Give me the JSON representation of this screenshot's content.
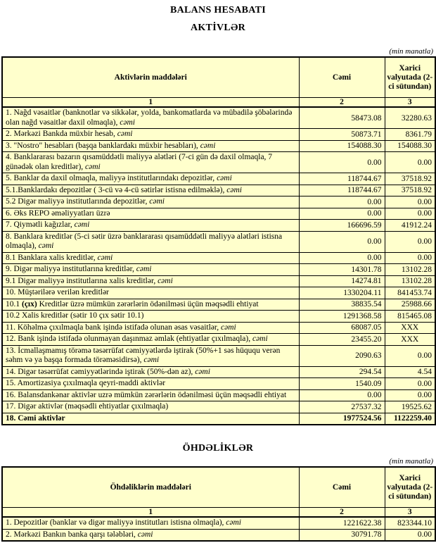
{
  "colors": {
    "cell_bg": "#FFFFCC",
    "white_bg": "#FFFFFF",
    "border": "#000000"
  },
  "page": {
    "title": "BALANS HESABATI"
  },
  "assets": {
    "heading": "AKTİVLƏR",
    "note": "(min manatla)",
    "columns": {
      "items": "Aktivlərin maddələri",
      "total": "Cəmi",
      "foreign": "Xarici valyutada (2-ci sütundan)",
      "nums": [
        "1",
        "2",
        "3"
      ]
    },
    "rows": [
      {
        "label": "1. Nağd vəsaitlər (banknotlar və sikkələr, yolda, bankomatlarda və mübadilə şöbələrində olan nağd vəsaitlər daxil olmaqla), ",
        "italic": "cəmi",
        "cemi": "58473.08",
        "xarici": "32280.63",
        "white": true,
        "vtop": true
      },
      {
        "label": "2. Mərkəzi Bankda müxbir hesab, ",
        "italic": "cəmi",
        "cemi": "50873.71",
        "xarici": "8361.79",
        "white": true
      },
      {
        "label": "3. \"Nostro\" hesabları (başqa banklardakı müxbir hesabları), ",
        "italic": "cəmi",
        "cemi": "154088.30",
        "xarici": "154088.30"
      },
      {
        "label": "4. Banklararası bazarın qısamüddətli maliyyə alətləri (7-ci gün də daxil olmaqla, 7 günədək olan kreditlər), ",
        "italic": "cəmi",
        "cemi": "0.00",
        "xarici": "0.00"
      },
      {
        "label": "5. Banklar da daxil olmaqla, maliyyə institutlarındakı depozitlər, ",
        "italic": "cəmi",
        "cemi": "118744.67",
        "xarici": "37518.92",
        "white": true
      },
      {
        "label": "5.1.Banklardakı depozitlər ( 3-cü və 4-cü sətirlər istisna edilməklə), ",
        "italic": "cəmi",
        "cemi": "118744.67",
        "xarici": "37518.92"
      },
      {
        "label": "5.2 Digər maliyyə institutlarında depozitlər, ",
        "italic": "cəmi",
        "cemi": "0.00",
        "xarici": "0.00"
      },
      {
        "label": "6. Əks REPO əməliyyatları üzrə",
        "cemi": "0.00",
        "xarici": "0.00"
      },
      {
        "label": "7. Qiymətli kağızlar, ",
        "italic": "cəmi",
        "cemi": "166696.59",
        "xarici": "41912.24"
      },
      {
        "label": "8. Banklara kreditlər (5-ci sətir üzrə banklararası qısamüddətli maliyyə alətləri istisna olmaqla), ",
        "italic": "cəmi",
        "cemi": "0.00",
        "xarici": "0.00"
      },
      {
        "label": "8.1 Banklara xalis kreditlər, ",
        "italic": "cəmi",
        "cemi": "0.00",
        "xarici": "0.00"
      },
      {
        "label": "9. Digər maliyyə institutlarına kreditlər, ",
        "italic": "cəmi",
        "cemi": "14301.78",
        "xarici": "13102.28"
      },
      {
        "label": "9.1 Digər maliyyə institutlarına xalis kreditlər, ",
        "italic": "cəmi",
        "cemi": "14274.81",
        "xarici": "13102.28"
      },
      {
        "label": "10. Müştərilərə verilən kreditlər",
        "cemi": "1330204.11",
        "xarici": "841453.74"
      },
      {
        "pre": "10.1 ",
        "boldpart": "(çıx)",
        "label": " Kreditlər üzrə mümkün zərərlərin ödənilməsi üçün məqsədli ehtiyat",
        "cemi": "38835.54",
        "xarici": "25988.66"
      },
      {
        "label": "10.2 Xalis kreditlər (sətir 10 çıx sətir 10.1)",
        "cemi": "1291368.58",
        "xarici": "815465.08"
      },
      {
        "label": "11. Köhəlmə çıxılmaqla bank işində istifadə olunan əsas vəsaitlər, ",
        "italic": "cəmi",
        "cemi": "68087.05",
        "xarici": "XXX"
      },
      {
        "label": "12. Bank işində istifadə olunmayan daşınmaz əmlak (ehtiyatlar çıxılmaqla), ",
        "italic": "cəmi",
        "cemi": "23455.20",
        "xarici": "XXX"
      },
      {
        "label": "13. İcmallaşmamış törəmə təsərrüfat cəmiyyətlərdə iştirak (50%+1 səs hüququ verən səhm və ya başqa formada törəməsidirsə), ",
        "italic": "cəmi",
        "cemi": "2090.63",
        "xarici": "0.00"
      },
      {
        "label": "14. Digər təsərrüfat cəmiyyətlərində iştirak (50%-dən az), ",
        "italic": "cəmi",
        "cemi": "294.54",
        "xarici": "4.54"
      },
      {
        "label": "15. Amortizasiya çıxılmaqla qeyri-maddi aktivlər",
        "cemi": "1540.09",
        "xarici": "0.00",
        "white": true
      },
      {
        "label": "16. Balansdankənar aktivlər uzrə mümkün zərərlərin ödənilməsi üçün məqsədli ehtiyat",
        "cemi": "0.00",
        "xarici": "0.00"
      },
      {
        "label": "17. Digər aktivlər (məqsədli ehtiyatlar çıxılmaqla)",
        "cemi": "27537.32",
        "xarici": "19525.62"
      },
      {
        "label": "18. Cəmi aktivlər",
        "bold": true,
        "cemi": "1977524.56",
        "xarici": "1122259.40"
      }
    ]
  },
  "liabilities": {
    "heading": "ÖHDƏLİKLƏR",
    "note": "(min manatla)",
    "columns": {
      "items": "Öhdəliklərin maddələri",
      "total": "Cəmi",
      "foreign": "Xarici valyutada (2-ci sütundan)",
      "nums": [
        "1",
        "2",
        "3"
      ]
    },
    "rows": [
      {
        "label": "1. Depozitlər (banklar və digər maliyyə institutları istisna olmaqla), ",
        "italic": "cəmi",
        "cemi": "1221622.38",
        "xarici": "823344.10",
        "white": true
      },
      {
        "label": "2. Mərkəzi Bankın banka qarşı tələbləri, ",
        "italic": "cəmi",
        "cemi": "30791.78",
        "xarici": "0.00",
        "white": true
      }
    ]
  }
}
